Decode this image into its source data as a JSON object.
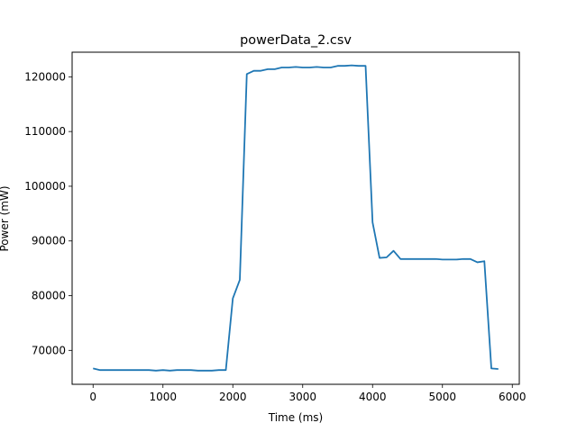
{
  "chart_data": {
    "type": "line",
    "title": "powerData_2.csv",
    "xlabel": "Time (ms)",
    "ylabel": "Power (mW)",
    "xlim": [
      -300,
      6100
    ],
    "ylim": [
      63800,
      124500
    ],
    "xticks": [
      0,
      1000,
      2000,
      3000,
      4000,
      5000,
      6000
    ],
    "yticks": [
      70000,
      80000,
      90000,
      100000,
      110000,
      120000
    ],
    "grid": false,
    "series": [
      {
        "color": "#1f77b4",
        "x": [
          0,
          100,
          200,
          300,
          400,
          500,
          600,
          700,
          800,
          900,
          1000,
          1100,
          1200,
          1300,
          1400,
          1500,
          1600,
          1700,
          1800,
          1900,
          2000,
          2100,
          2200,
          2300,
          2400,
          2500,
          2600,
          2700,
          2800,
          2900,
          3000,
          3100,
          3200,
          3300,
          3400,
          3500,
          3600,
          3700,
          3800,
          3900,
          4000,
          4100,
          4200,
          4300,
          4400,
          4500,
          4600,
          4700,
          4800,
          4900,
          5000,
          5100,
          5200,
          5300,
          5400,
          5500,
          5600,
          5700,
          5800
        ],
        "y": [
          66700,
          66400,
          66400,
          66400,
          66400,
          66400,
          66400,
          66400,
          66400,
          66300,
          66400,
          66300,
          66400,
          66400,
          66400,
          66300,
          66300,
          66300,
          66400,
          66400,
          79500,
          82900,
          120500,
          121100,
          121100,
          121400,
          121400,
          121700,
          121700,
          121800,
          121700,
          121700,
          121800,
          121700,
          121700,
          122000,
          122000,
          122100,
          122000,
          122000,
          93400,
          86900,
          87000,
          88200,
          86700,
          86700,
          86700,
          86700,
          86700,
          86700,
          86600,
          86600,
          86600,
          86700,
          86700,
          86100,
          86300,
          66700,
          66600
        ]
      }
    ]
  }
}
